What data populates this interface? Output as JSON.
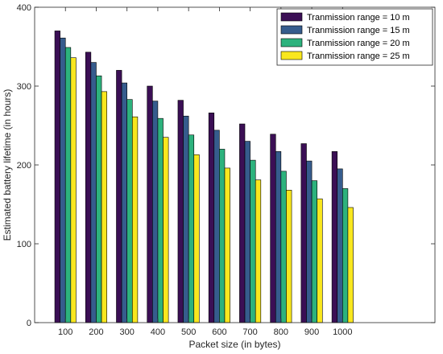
{
  "chart_data": {
    "type": "bar",
    "xlabel": "Packet size (in bytes)",
    "ylabel": "Estimated battery lifetime (in hours)",
    "categories": [
      "100",
      "200",
      "300",
      "400",
      "500",
      "600",
      "700",
      "800",
      "900",
      "1000"
    ],
    "xlim": [
      0,
      1300
    ],
    "ylim": [
      0,
      400
    ],
    "yticks": [
      0,
      100,
      200,
      300,
      400
    ],
    "grid": false,
    "legend_position": "top-right",
    "series": [
      {
        "name": "Tranmission range = 10 m",
        "color": "#3b0f55",
        "values": [
          370,
          343,
          320,
          300,
          282,
          266,
          252,
          239,
          227,
          217
        ]
      },
      {
        "name": "Tranmission range = 15 m",
        "color": "#365c8d",
        "values": [
          361,
          330,
          304,
          281,
          262,
          244,
          230,
          217,
          205,
          195
        ]
      },
      {
        "name": "Tranmission range = 20 m",
        "color": "#2db27d",
        "values": [
          349,
          313,
          283,
          259,
          238,
          220,
          206,
          192,
          180,
          170
        ]
      },
      {
        "name": "Tranmission range = 25 m",
        "color": "#f9e71e",
        "values": [
          336,
          293,
          261,
          235,
          213,
          196,
          181,
          168,
          157,
          146
        ]
      }
    ]
  }
}
